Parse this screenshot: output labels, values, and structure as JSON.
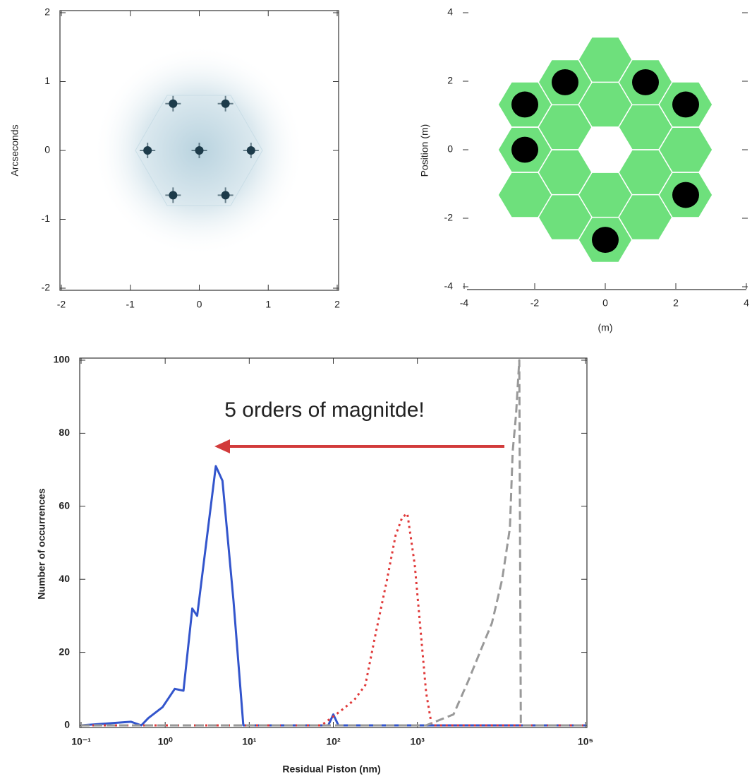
{
  "chart_data": [
    {
      "type": "scatter",
      "ylabel": "Arcseconds",
      "xlim": [
        -2,
        2
      ],
      "ylim": [
        -2,
        2
      ],
      "xticks": [
        -2,
        -1,
        0,
        1,
        2
      ],
      "yticks": [
        -2,
        -1,
        0,
        1,
        2
      ],
      "color": "#1d3b4a",
      "x": [
        0,
        -0.38,
        0.38,
        -0.75,
        0.75,
        -0.38,
        0.38
      ],
      "values": [
        0,
        0.68,
        0.68,
        0,
        0,
        -0.65,
        -0.65
      ]
    },
    {
      "type": "segments",
      "xlabel": "(m)",
      "ylabel": "Position (m)",
      "xlim": [
        -4,
        4
      ],
      "ylim": [
        -4,
        4
      ],
      "xticks": [
        -4,
        -2,
        0,
        2,
        4
      ],
      "yticks": [
        -4,
        -2,
        0,
        2,
        4
      ],
      "segments": {
        "color": "#6ee07c",
        "radius": 0.76,
        "x": [
          0,
          0,
          1.14,
          1.14,
          -1.14,
          -1.14,
          0,
          0,
          1.14,
          1.14,
          -1.14,
          -1.14,
          2.28,
          -2.28,
          2.28,
          2.28,
          -2.28,
          -2.28
        ],
        "y": [
          1.32,
          -1.32,
          0.66,
          -0.66,
          0.66,
          -0.66,
          2.63,
          -2.63,
          1.97,
          -1.97,
          1.97,
          -1.97,
          0,
          0,
          1.32,
          -1.32,
          1.32,
          -1.32
        ]
      },
      "spots": {
        "color": "#000000",
        "radius": 0.38,
        "x": [
          -1.14,
          1.14,
          -2.28,
          2.28,
          -2.28,
          2.28,
          0
        ],
        "y": [
          1.97,
          1.97,
          1.32,
          1.32,
          0,
          -1.32,
          -2.63
        ]
      }
    },
    {
      "type": "line",
      "log_x": true,
      "xlabel": "Residual Piston (nm)",
      "ylabel": "Number of occurrences",
      "annotation": "5 orders of magnitde!",
      "xlim": [
        0.1,
        100000
      ],
      "ylim": [
        0,
        100
      ],
      "xticks": [
        {
          "value": 0.1,
          "label": "10⁻¹"
        },
        {
          "value": 1,
          "label": "10⁰"
        },
        {
          "value": 10,
          "label": "10¹"
        },
        {
          "value": 100,
          "label": "10²"
        },
        {
          "value": 1000,
          "label": "10³"
        },
        {
          "value": 100000,
          "label": "10⁵"
        }
      ],
      "yticks": [
        0,
        20,
        40,
        60,
        80,
        100
      ],
      "series": [
        {
          "color": "#3355cc",
          "dash": "solid",
          "x": [
            0.1,
            0.39,
            0.52,
            0.63,
            0.93,
            1.3,
            1.65,
            2.1,
            2.4,
            4.0,
            4.8,
            6.5,
            8.5,
            87,
            100,
            115,
            100000
          ],
          "values": [
            0,
            1,
            0,
            2,
            5,
            10,
            9.5,
            32,
            30,
            71,
            67,
            34,
            0,
            0,
            3,
            0,
            0
          ]
        },
        {
          "color": "#e03a3a",
          "dash": "dotted",
          "x": [
            0.1,
            72,
            123,
            178,
            240,
            318,
            436,
            550,
            660,
            760,
            930,
            1270,
            1480,
            100000
          ],
          "values": [
            0,
            0,
            4,
            7,
            11,
            25,
            40,
            52,
            57,
            58,
            44,
            9,
            0,
            0
          ]
        },
        {
          "color": "#999999",
          "dash": "dashed",
          "x": [
            0.1,
            1270,
            2690,
            4000,
            5770,
            7700,
            10200,
            12600,
            13600,
            14900,
            16300,
            17000,
            100000
          ],
          "values": [
            0,
            0,
            3,
            12,
            21,
            28,
            40,
            54,
            75,
            85,
            100,
            0,
            0
          ]
        }
      ]
    }
  ]
}
